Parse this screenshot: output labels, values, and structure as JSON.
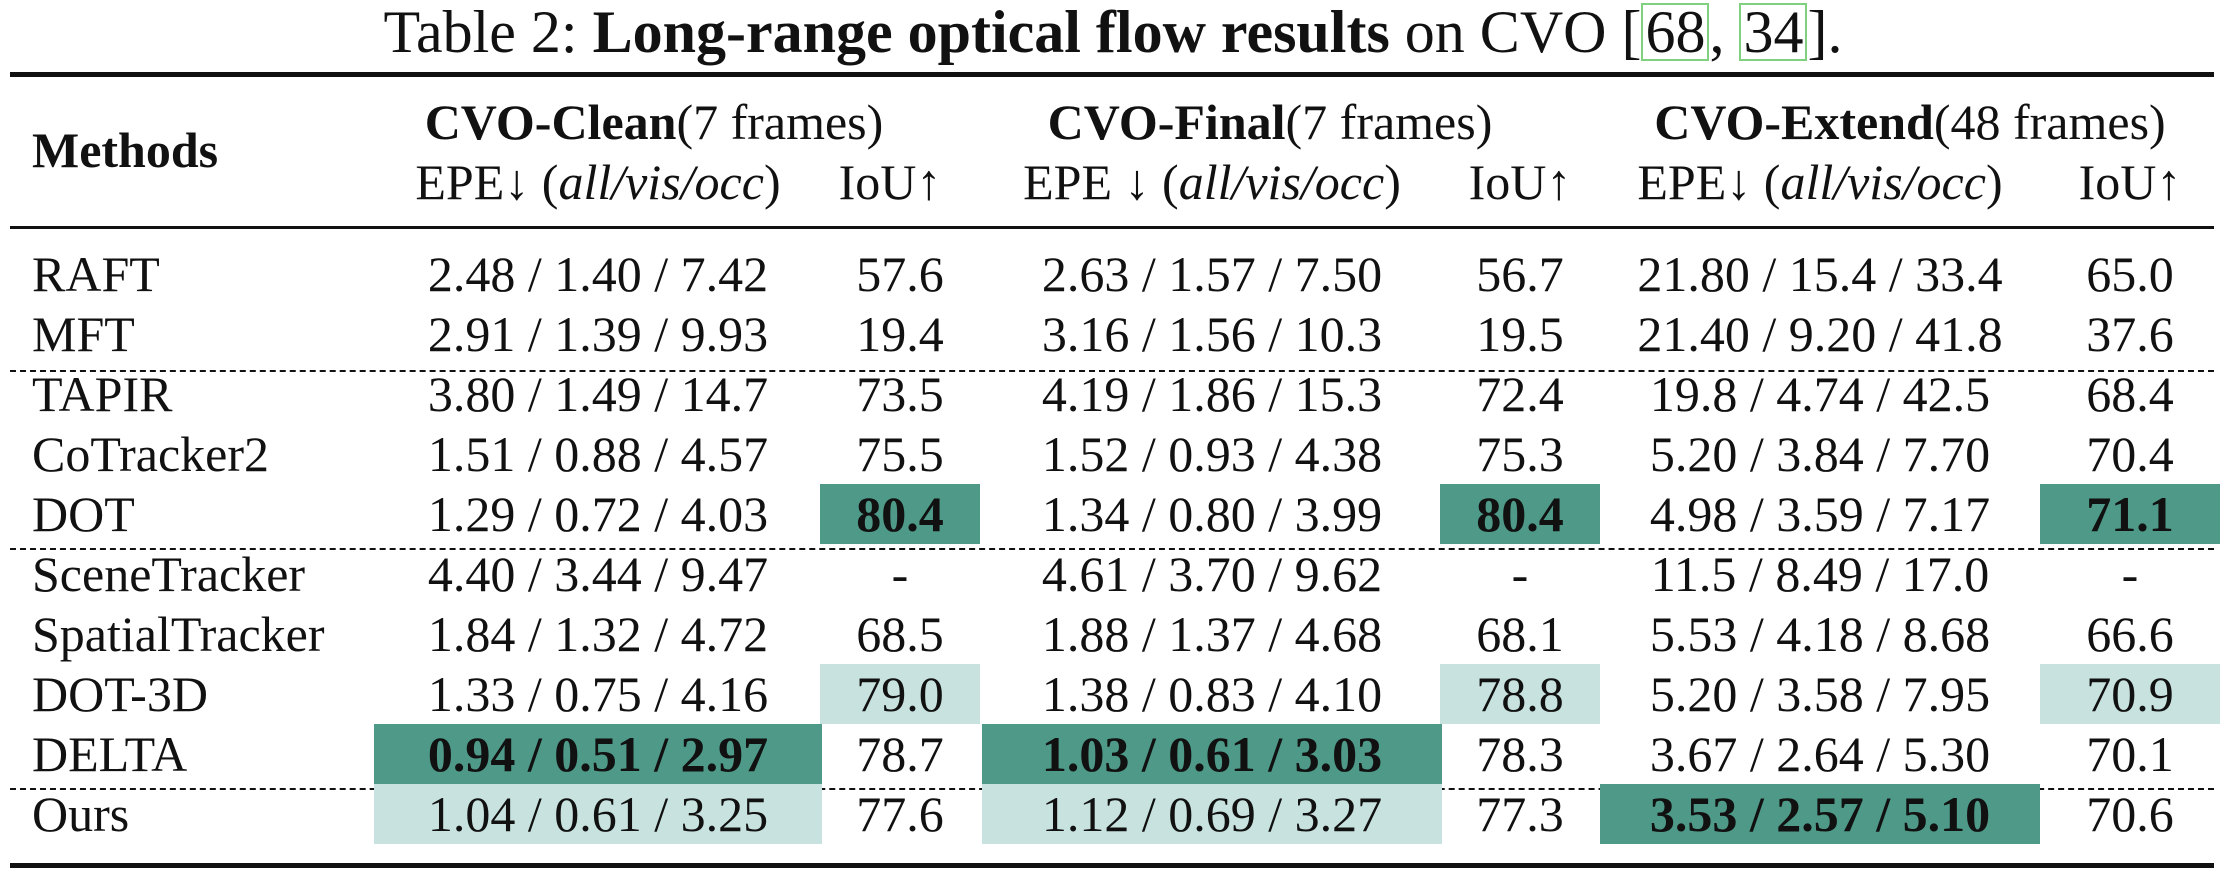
{
  "caption": {
    "prefix": "Table 2: ",
    "bold": "Long-range optical flow results",
    "mid": " on CVO [",
    "cite1": "68",
    "sep": ", ",
    "cite2": "34",
    "suffix": "]."
  },
  "header": {
    "methods": "Methods",
    "groups": [
      {
        "name": "CVO-Clean",
        "detail": " (7 frames)"
      },
      {
        "name": "CVO-Final",
        "detail": " (7 frames)"
      },
      {
        "name": "CVO-Extend",
        "detail": " (48 frames)"
      }
    ],
    "sub": [
      {
        "epe_label": "EPE↓ (",
        "epe_italic": "all/vis/occ",
        "epe_close": ")",
        "iou": "IoU↑"
      },
      {
        "epe_label": "EPE ↓ (",
        "epe_italic": "all/vis/occ",
        "epe_close": ")",
        "iou": "IoU↑"
      },
      {
        "epe_label": "EPE↓ (",
        "epe_italic": "all/vis/occ",
        "epe_close": ")",
        "iou": "IoU↑"
      }
    ]
  },
  "rows": [
    {
      "method": "RAFT",
      "cells": [
        "2.48 / 1.40 / 7.42",
        "57.6",
        "2.63 / 1.57 / 7.50",
        "56.7",
        "21.80 / 15.4 / 33.4",
        "65.0"
      ],
      "hl": [
        "",
        "",
        "",
        "",
        "",
        ""
      ]
    },
    {
      "method": "MFT",
      "cells": [
        "2.91 / 1.39 / 9.93",
        "19.4",
        "3.16 / 1.56 / 10.3",
        "19.5",
        "21.40 / 9.20 / 41.8",
        "37.6"
      ],
      "hl": [
        "",
        "",
        "",
        "",
        "",
        ""
      ]
    },
    {
      "method": "TAPIR",
      "cells": [
        "3.80 / 1.49 / 14.7",
        "73.5",
        "4.19 / 1.86 / 15.3",
        "72.4",
        "19.8 / 4.74 / 42.5",
        "68.4"
      ],
      "hl": [
        "",
        "",
        "",
        "",
        "",
        ""
      ]
    },
    {
      "method": "CoTracker2",
      "cells": [
        "1.51 / 0.88 / 4.57",
        "75.5",
        "1.52 / 0.93 / 4.38",
        "75.3",
        "5.20 / 3.84 / 7.70",
        "70.4"
      ],
      "hl": [
        "",
        "",
        "",
        "",
        "",
        ""
      ]
    },
    {
      "method": "DOT",
      "cells": [
        "1.29 / 0.72 / 4.03",
        "80.4",
        "1.34 / 0.80 / 3.99",
        "80.4",
        "4.98 / 3.59 / 7.17",
        "71.1"
      ],
      "hl": [
        "",
        "best",
        "",
        "best",
        "",
        "best"
      ]
    },
    {
      "method": "SceneTracker",
      "cells": [
        "4.40 / 3.44 / 9.47",
        "-",
        "4.61 / 3.70 / 9.62",
        "-",
        "11.5 / 8.49 / 17.0",
        "-"
      ],
      "hl": [
        "",
        "",
        "",
        "",
        "",
        ""
      ]
    },
    {
      "method": "SpatialTracker",
      "cells": [
        "1.84 / 1.32 / 4.72",
        "68.5",
        "1.88 / 1.37 / 4.68",
        "68.1",
        "5.53 / 4.18 / 8.68",
        "66.6"
      ],
      "hl": [
        "",
        "",
        "",
        "",
        "",
        ""
      ]
    },
    {
      "method": "DOT-3D",
      "cells": [
        "1.33 / 0.75 / 4.16",
        "79.0",
        "1.38 / 0.83 / 4.10",
        "78.8",
        "5.20 / 3.58 / 7.95",
        "70.9"
      ],
      "hl": [
        "",
        "second",
        "",
        "second",
        "",
        "second"
      ]
    },
    {
      "method": "DELTA",
      "cells": [
        "0.94 / 0.51 / 2.97",
        "78.7",
        "1.03 / 0.61 / 3.03",
        "78.3",
        "3.67 / 2.64 / 5.30",
        "70.1"
      ],
      "hl": [
        "best",
        "",
        "best",
        "",
        "",
        ""
      ]
    },
    {
      "method": "Ours",
      "cells": [
        "1.04 / 0.61 / 3.25",
        "77.6",
        "1.12 / 0.69 / 3.27",
        "77.3",
        "3.53 / 2.57 / 5.10",
        "70.6"
      ],
      "hl": [
        "second",
        "",
        "second",
        "",
        "best",
        ""
      ]
    }
  ],
  "colors": {
    "best": "#4e9988",
    "second": "#c8e3df",
    "cite_box": "#7fd17f"
  }
}
